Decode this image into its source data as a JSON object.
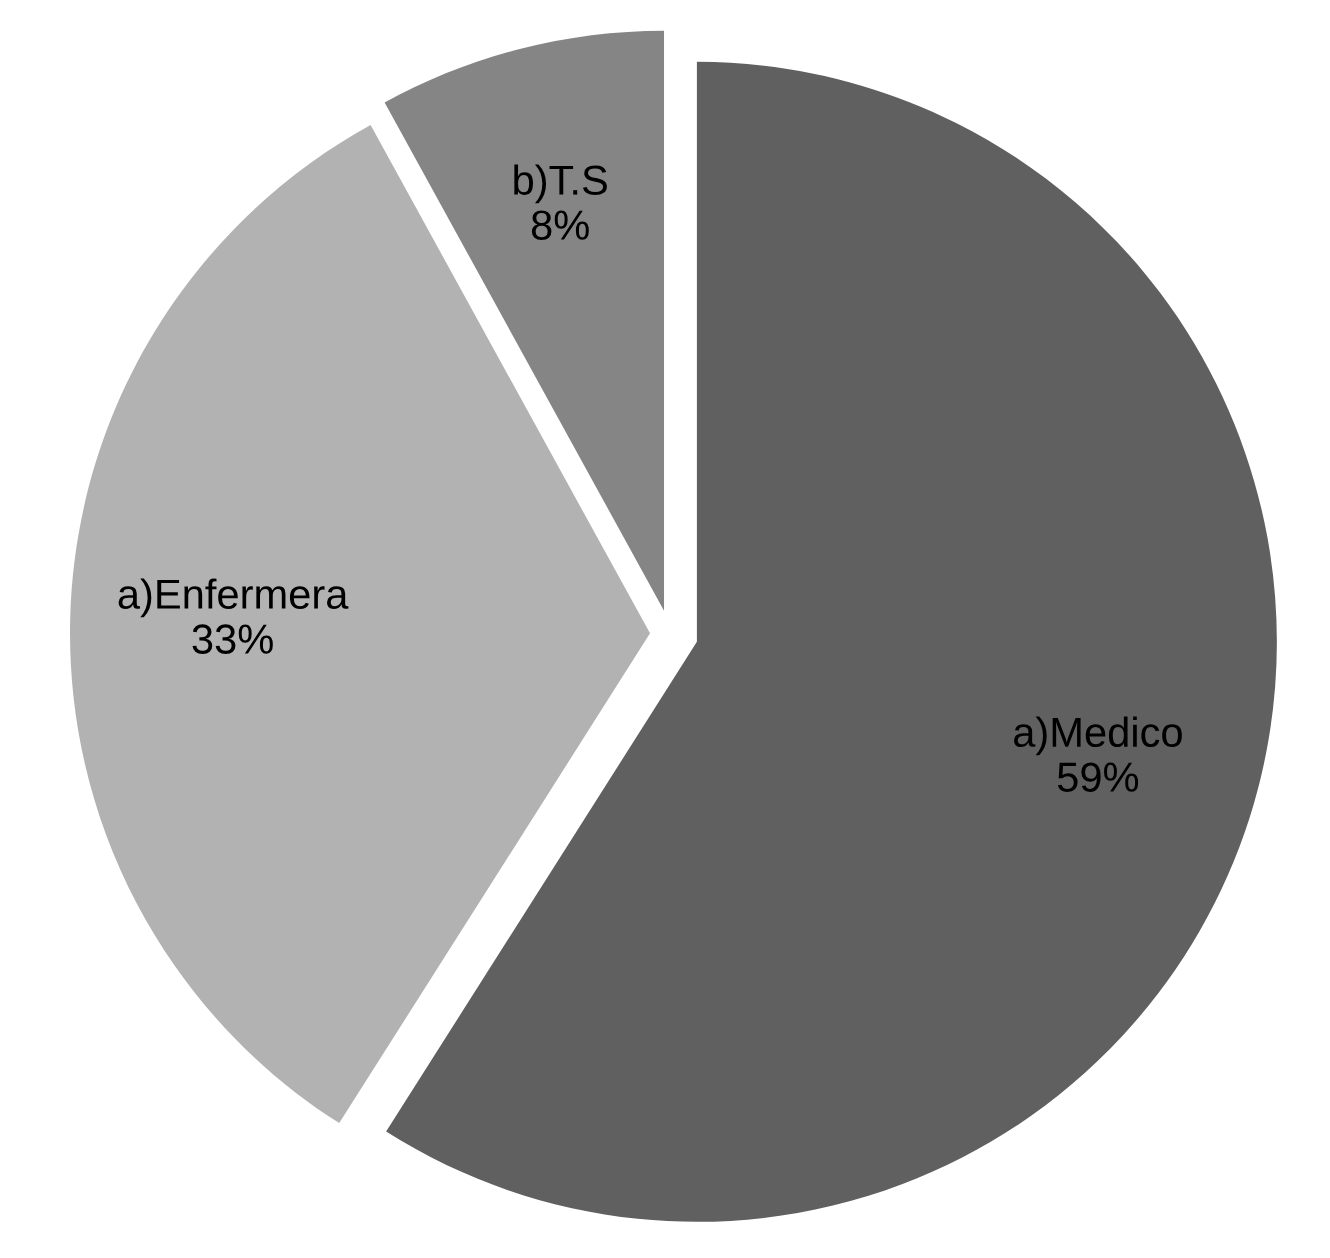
{
  "chart_data": {
    "type": "pie",
    "categories": [
      "a)Medico",
      "a)Enfermera",
      "b)T.S"
    ],
    "values": [
      59,
      33,
      8
    ],
    "colors": [
      "#606060",
      "#b2b2b2",
      "#858585"
    ],
    "value_labels": [
      "59%",
      "33%",
      "8%"
    ],
    "legend": false
  }
}
